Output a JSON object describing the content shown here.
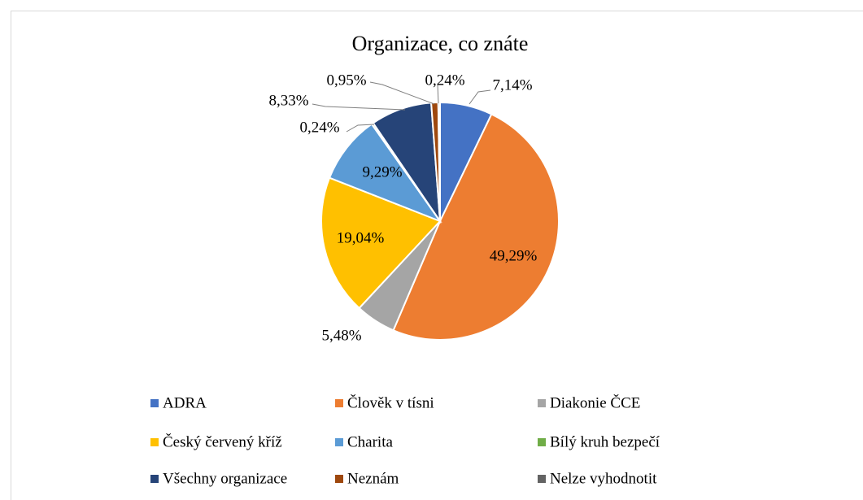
{
  "chart_data": {
    "type": "pie",
    "title": "Organizace, co znáte",
    "categories": [
      "ADRA",
      "Člověk v tísni",
      "Diakonie ČCE",
      "Český červený kříž",
      "Charita",
      "Bílý kruh bezpečí",
      "Všechny organizace",
      "Neznám",
      "Nelze vyhodnotit"
    ],
    "values": [
      7.14,
      49.29,
      5.48,
      19.04,
      9.29,
      0.24,
      8.33,
      0.95,
      0.24
    ],
    "value_labels": [
      "7,14%",
      "49,29%",
      "5,48%",
      "19,04%",
      "9,29%",
      "0,24%",
      "8,33%",
      "0,95%",
      "0,24%"
    ],
    "colors": [
      "#4472c4",
      "#ed7d31",
      "#a5a5a5",
      "#ffc000",
      "#5b9bd5",
      "#70ad47",
      "#264478",
      "#9e480e",
      "#636363"
    ],
    "legend": "bottom"
  }
}
